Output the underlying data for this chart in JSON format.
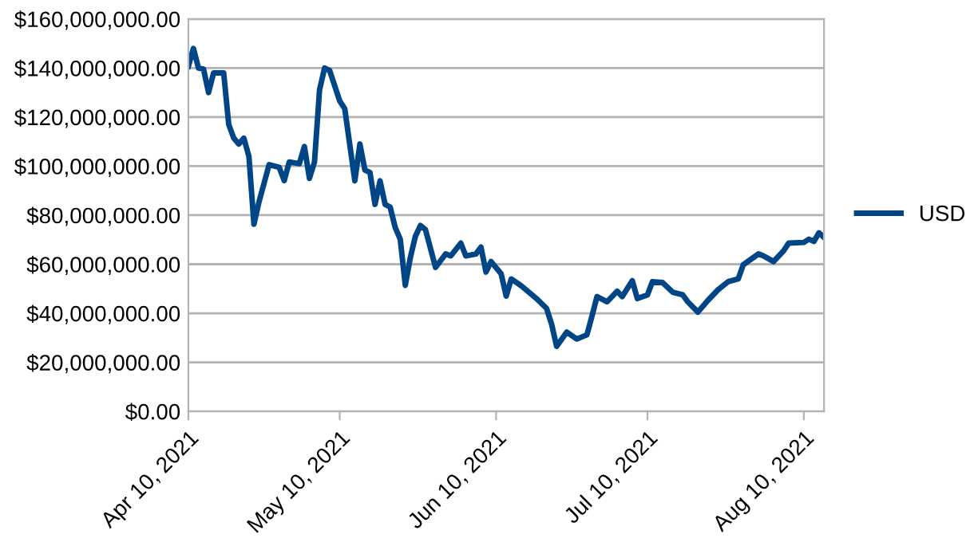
{
  "chart_data": {
    "type": "line",
    "x": [
      "2021-04-10",
      "2021-04-11",
      "2021-04-12",
      "2021-04-13",
      "2021-04-14",
      "2021-04-15",
      "2021-04-17",
      "2021-04-18",
      "2021-04-19",
      "2021-04-20",
      "2021-04-21",
      "2021-04-22",
      "2021-04-23",
      "2021-04-24",
      "2021-04-26",
      "2021-04-28",
      "2021-04-29",
      "2021-04-30",
      "2021-05-02",
      "2021-05-03",
      "2021-05-04",
      "2021-05-05",
      "2021-05-06",
      "2021-05-07",
      "2021-05-08",
      "2021-05-10",
      "2021-05-11",
      "2021-05-13",
      "2021-05-14",
      "2021-05-15",
      "2021-05-16",
      "2021-05-17",
      "2021-05-18",
      "2021-05-19",
      "2021-05-20",
      "2021-05-21",
      "2021-05-22",
      "2021-05-23",
      "2021-05-24",
      "2021-05-25",
      "2021-05-26",
      "2021-05-27",
      "2021-05-29",
      "2021-05-31",
      "2021-06-01",
      "2021-06-03",
      "2021-06-04",
      "2021-06-06",
      "2021-06-07",
      "2021-06-08",
      "2021-06-09",
      "2021-06-11",
      "2021-06-12",
      "2021-06-13",
      "2021-06-15",
      "2021-06-18",
      "2021-06-20",
      "2021-06-21",
      "2021-06-22",
      "2021-06-24",
      "2021-06-26",
      "2021-06-28",
      "2021-06-29",
      "2021-06-30",
      "2021-07-02",
      "2021-07-04",
      "2021-07-05",
      "2021-07-07",
      "2021-07-08",
      "2021-07-10",
      "2021-07-11",
      "2021-07-13",
      "2021-07-15",
      "2021-07-17",
      "2021-07-18",
      "2021-07-20",
      "2021-07-22",
      "2021-07-24",
      "2021-07-26",
      "2021-07-28",
      "2021-07-29",
      "2021-08-01",
      "2021-08-02",
      "2021-08-04",
      "2021-08-06",
      "2021-08-07",
      "2021-08-10",
      "2021-08-11",
      "2021-08-12",
      "2021-08-13",
      "2021-08-14"
    ],
    "series": [
      {
        "name": "USD",
        "color": "#004586",
        "values": [
          140700000,
          148000000,
          140000000,
          139600000,
          130000000,
          138000000,
          138000000,
          117000000,
          111400000,
          109000000,
          111400000,
          104000000,
          76300000,
          85400000,
          100600000,
          99500000,
          94100000,
          101700000,
          101000000,
          108000000,
          95000000,
          101700000,
          131000000,
          140000000,
          139000000,
          126600000,
          123400000,
          94000000,
          109000000,
          98400000,
          97400000,
          84400000,
          94000000,
          84400000,
          83300000,
          75000000,
          70200000,
          51400000,
          62700000,
          71400000,
          75800000,
          74100000,
          58700000,
          64200000,
          63400000,
          68600000,
          63400000,
          64200000,
          67000000,
          56800000,
          61100000,
          56100000,
          47000000,
          54000000,
          51200000,
          46000000,
          42000000,
          35600000,
          26500000,
          32300000,
          29500000,
          31200000,
          38800000,
          46800000,
          44700000,
          49000000,
          46800000,
          53300000,
          46000000,
          47500000,
          52900000,
          52500000,
          48600000,
          47500000,
          44700000,
          40500000,
          45300000,
          49600000,
          52900000,
          54000000,
          59800000,
          64200000,
          63400000,
          61100000,
          65500000,
          68600000,
          68900000,
          70200000,
          69300000,
          72800000,
          70900000
        ]
      }
    ],
    "xlim": [
      "2021-04-10",
      "2021-08-14"
    ],
    "xticks": [
      {
        "value": "2021-04-10",
        "label": "Apr 10, 2021"
      },
      {
        "value": "2021-05-10",
        "label": "May 10, 2021"
      },
      {
        "value": "2021-06-10",
        "label": "Jun 10, 2021"
      },
      {
        "value": "2021-07-10",
        "label": "Jul 10, 2021"
      },
      {
        "value": "2021-08-10",
        "label": "Aug 10, 2021"
      }
    ],
    "ylim": [
      0,
      160000000
    ],
    "yticks": [
      {
        "value": 0,
        "label": "$0.00"
      },
      {
        "value": 20000000,
        "label": "$20,000,000.00"
      },
      {
        "value": 40000000,
        "label": "$40,000,000.00"
      },
      {
        "value": 60000000,
        "label": "$60,000,000.00"
      },
      {
        "value": 80000000,
        "label": "$80,000,000.00"
      },
      {
        "value": 100000000,
        "label": "$100,000,000.00"
      },
      {
        "value": 120000000,
        "label": "$120,000,000.00"
      },
      {
        "value": 140000000,
        "label": "$140,000,000.00"
      },
      {
        "value": 160000000,
        "label": "$160,000,000.00"
      }
    ],
    "grid": "y",
    "legend": "right",
    "marker": "none",
    "line_style": "solid"
  }
}
